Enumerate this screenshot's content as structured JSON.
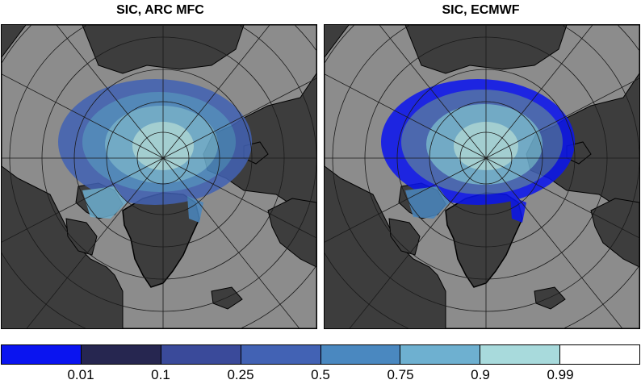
{
  "titles": {
    "left": "SIC, ARC MFC",
    "right": "SIC, ECMWF"
  },
  "colorbar": {
    "colors": [
      "#0a14f0",
      "#262650",
      "#3a4a9a",
      "#4262b4",
      "#4a88c0",
      "#6eb0d0",
      "#a8dadc",
      "#ffffff"
    ],
    "tick_labels": [
      "0.01",
      "0.1",
      "0.25",
      "0.5",
      "0.75",
      "0.9",
      "0.99"
    ]
  },
  "map_colors": {
    "land": "#3d3d3d",
    "ocean": "#8c8c8c",
    "grid": "#1a1a1a"
  }
}
